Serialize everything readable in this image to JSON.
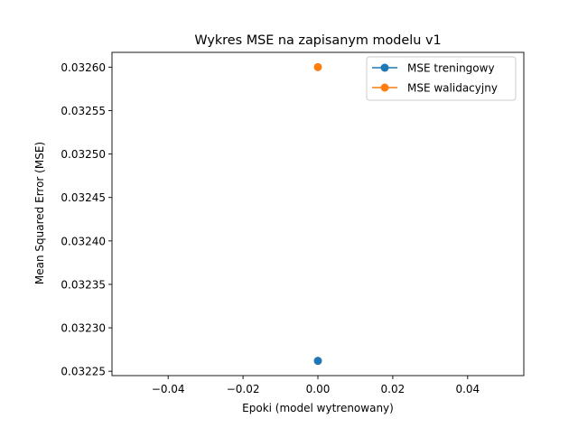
{
  "chart_data": {
    "type": "scatter",
    "title": "Wykres MSE na zapisanym modelu v1",
    "xlabel": "Epoki (model wytrenowany)",
    "ylabel": "Mean Squared Error (MSE)",
    "xlim": [
      -0.055,
      0.055
    ],
    "ylim": [
      0.032245,
      0.032617
    ],
    "x_ticks": [
      -0.04,
      -0.02,
      0.0,
      0.02,
      0.04
    ],
    "x_tick_labels": [
      "−0.04",
      "−0.02",
      "0.00",
      "0.02",
      "0.04"
    ],
    "y_ticks": [
      0.03225,
      0.0323,
      0.03235,
      0.0324,
      0.03245,
      0.0325,
      0.03255,
      0.0326
    ],
    "y_tick_labels": [
      "0.03225",
      "0.03230",
      "0.03235",
      "0.03240",
      "0.03245",
      "0.03250",
      "0.03255",
      "0.03260"
    ],
    "grid": false,
    "legend_position": "top-right",
    "series": [
      {
        "name": "MSE treningowy",
        "color": "#1f77b4",
        "x": [
          0
        ],
        "y": [
          0.032262
        ]
      },
      {
        "name": "MSE walidacyjny",
        "color": "#ff7f0e",
        "x": [
          0
        ],
        "y": [
          0.0326
        ]
      }
    ]
  }
}
